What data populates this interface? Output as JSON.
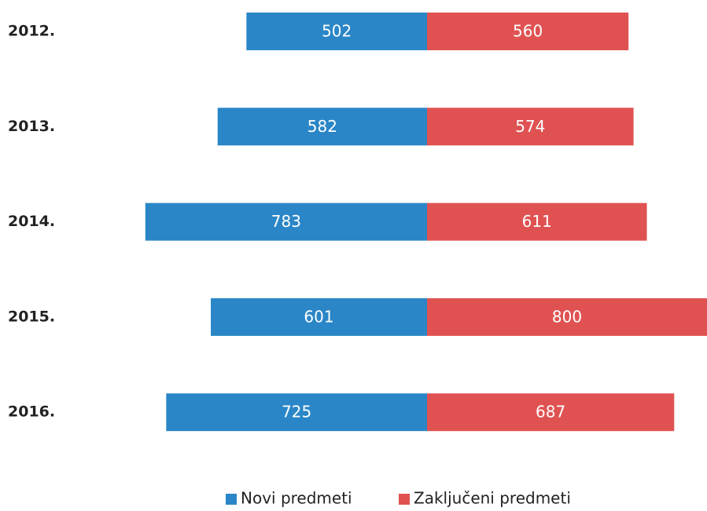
{
  "chart_data": {
    "type": "bar",
    "orientation": "horizontal",
    "layout": "diverging",
    "categories": [
      "2012.",
      "2013.",
      "2014.",
      "2015.",
      "2016."
    ],
    "series": [
      {
        "name": "Novi predmeti",
        "color": "#2a86c7",
        "values": [
          502,
          582,
          783,
          601,
          725
        ]
      },
      {
        "name": "Zaključeni predmeti",
        "color": "#e05252",
        "values": [
          560,
          574,
          611,
          800,
          687
        ]
      }
    ],
    "legend": "bottom"
  }
}
